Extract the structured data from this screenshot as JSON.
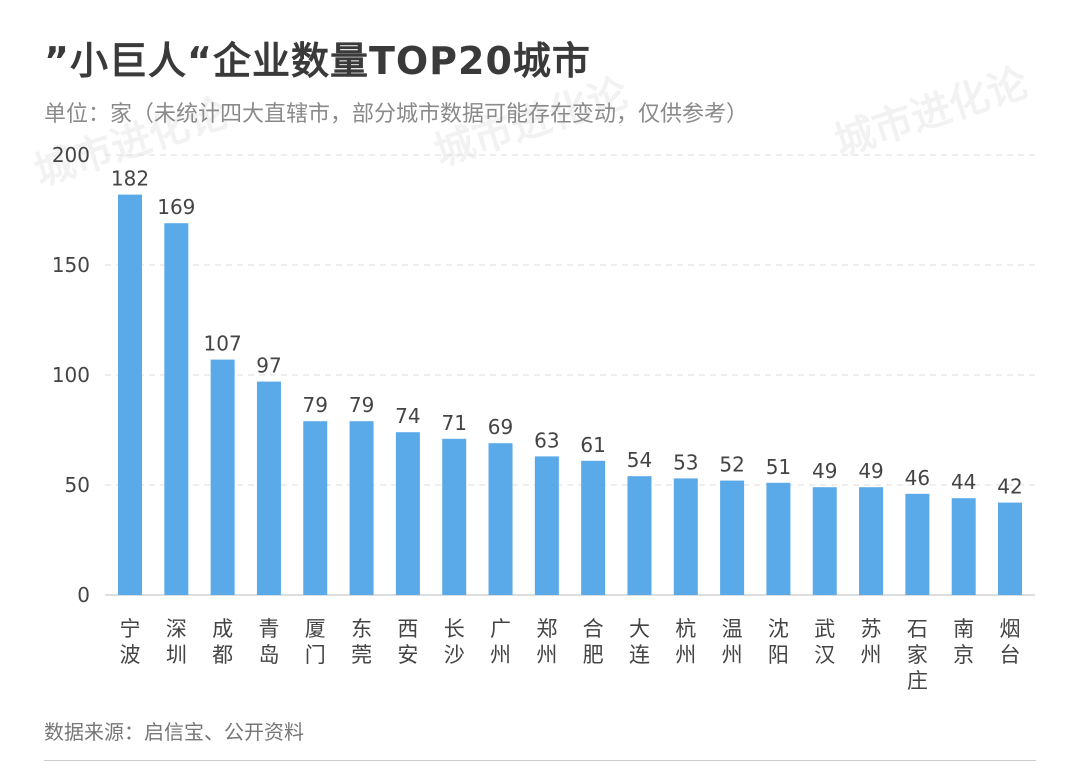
{
  "chart_data": {
    "type": "bar",
    "title": "”小巨人“企业数量TOP20城市",
    "subtitle": "单位：家（未统计四大直辖市，部分城市数据可能存在变动，仅供参考）",
    "categories": [
      "宁波",
      "深圳",
      "成都",
      "青岛",
      "厦门",
      "东莞",
      "西安",
      "长沙",
      "广州",
      "郑州",
      "合肥",
      "大连",
      "杭州",
      "温州",
      "沈阳",
      "武汉",
      "苏州",
      "石家庄",
      "南京",
      "烟台"
    ],
    "values": [
      182,
      169,
      107,
      97,
      79,
      79,
      74,
      71,
      69,
      63,
      61,
      54,
      53,
      52,
      51,
      49,
      49,
      46,
      44,
      42
    ],
    "ylim": [
      0,
      200
    ],
    "yticks": [
      0,
      50,
      100,
      150,
      200
    ],
    "grid": true,
    "data_labels": true,
    "bar_color": "#5aaaea",
    "source": "数据来源：启信宝、公开资料"
  }
}
